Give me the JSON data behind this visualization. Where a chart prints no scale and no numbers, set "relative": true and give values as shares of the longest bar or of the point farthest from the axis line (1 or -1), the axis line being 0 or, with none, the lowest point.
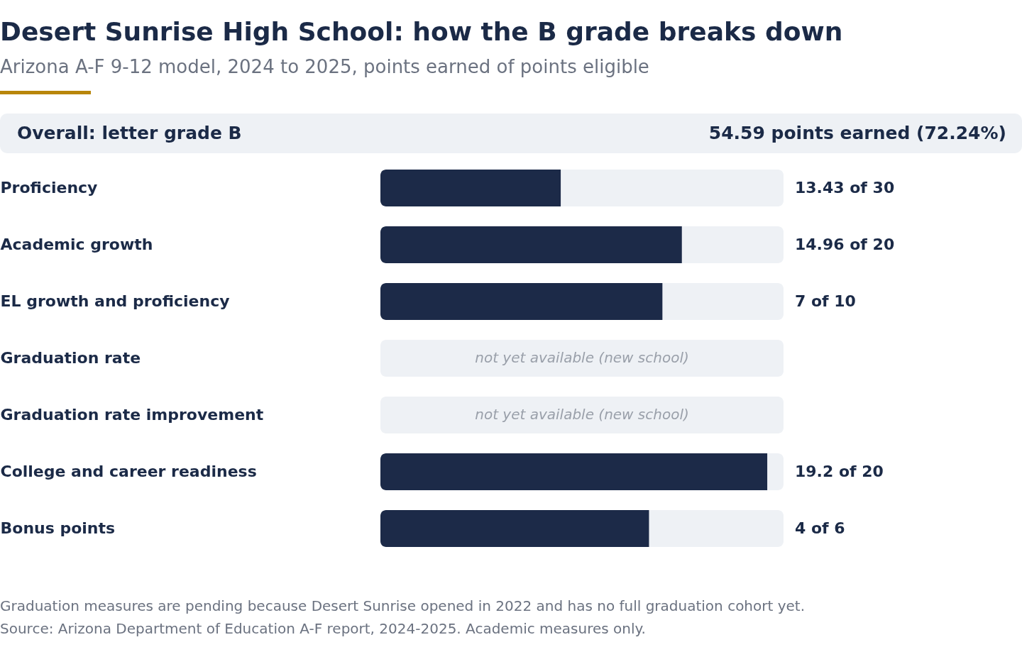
{
  "chart_data": {
    "type": "bar",
    "orientation": "horizontal",
    "stacked": true,
    "relative": true,
    "title": "Desert Sunrise High School: how the B grade breaks down",
    "subtitle": "Arizona A-F 9-12 model, 2024 to 2025, points earned of points eligible",
    "categories": [
      "Proficiency",
      "Academic growth",
      "EL growth and proficiency",
      "Graduation rate",
      "Graduation rate improvement",
      "College and career readiness",
      "Bonus points"
    ],
    "series": [
      {
        "color": "#1c2a48",
        "values": [
          0.4477,
          0.748,
          0.7,
          null,
          null,
          0.96,
          0.6667
        ]
      },
      {
        "color": "#eef1f5",
        "values": [
          0.5523,
          0.252,
          0.3,
          1,
          1,
          0.04,
          0.3333
        ]
      }
    ],
    "annotations": [
      "Overall: letter grade B",
      "54.59 points earned (72.24%)",
      "13.43 of 30",
      "14.96 of 20",
      "7 of 10",
      "19.2 of 20",
      "4 of 6",
      "not yet available (new school)",
      "not yet available (new school)",
      "Graduation measures are pending because Desert Sunrise opened in 2022 and has no full graduation cohort yet.",
      "Source: Arizona Department of Education A-F report, 2024-2025. Academic measures only."
    ]
  }
}
